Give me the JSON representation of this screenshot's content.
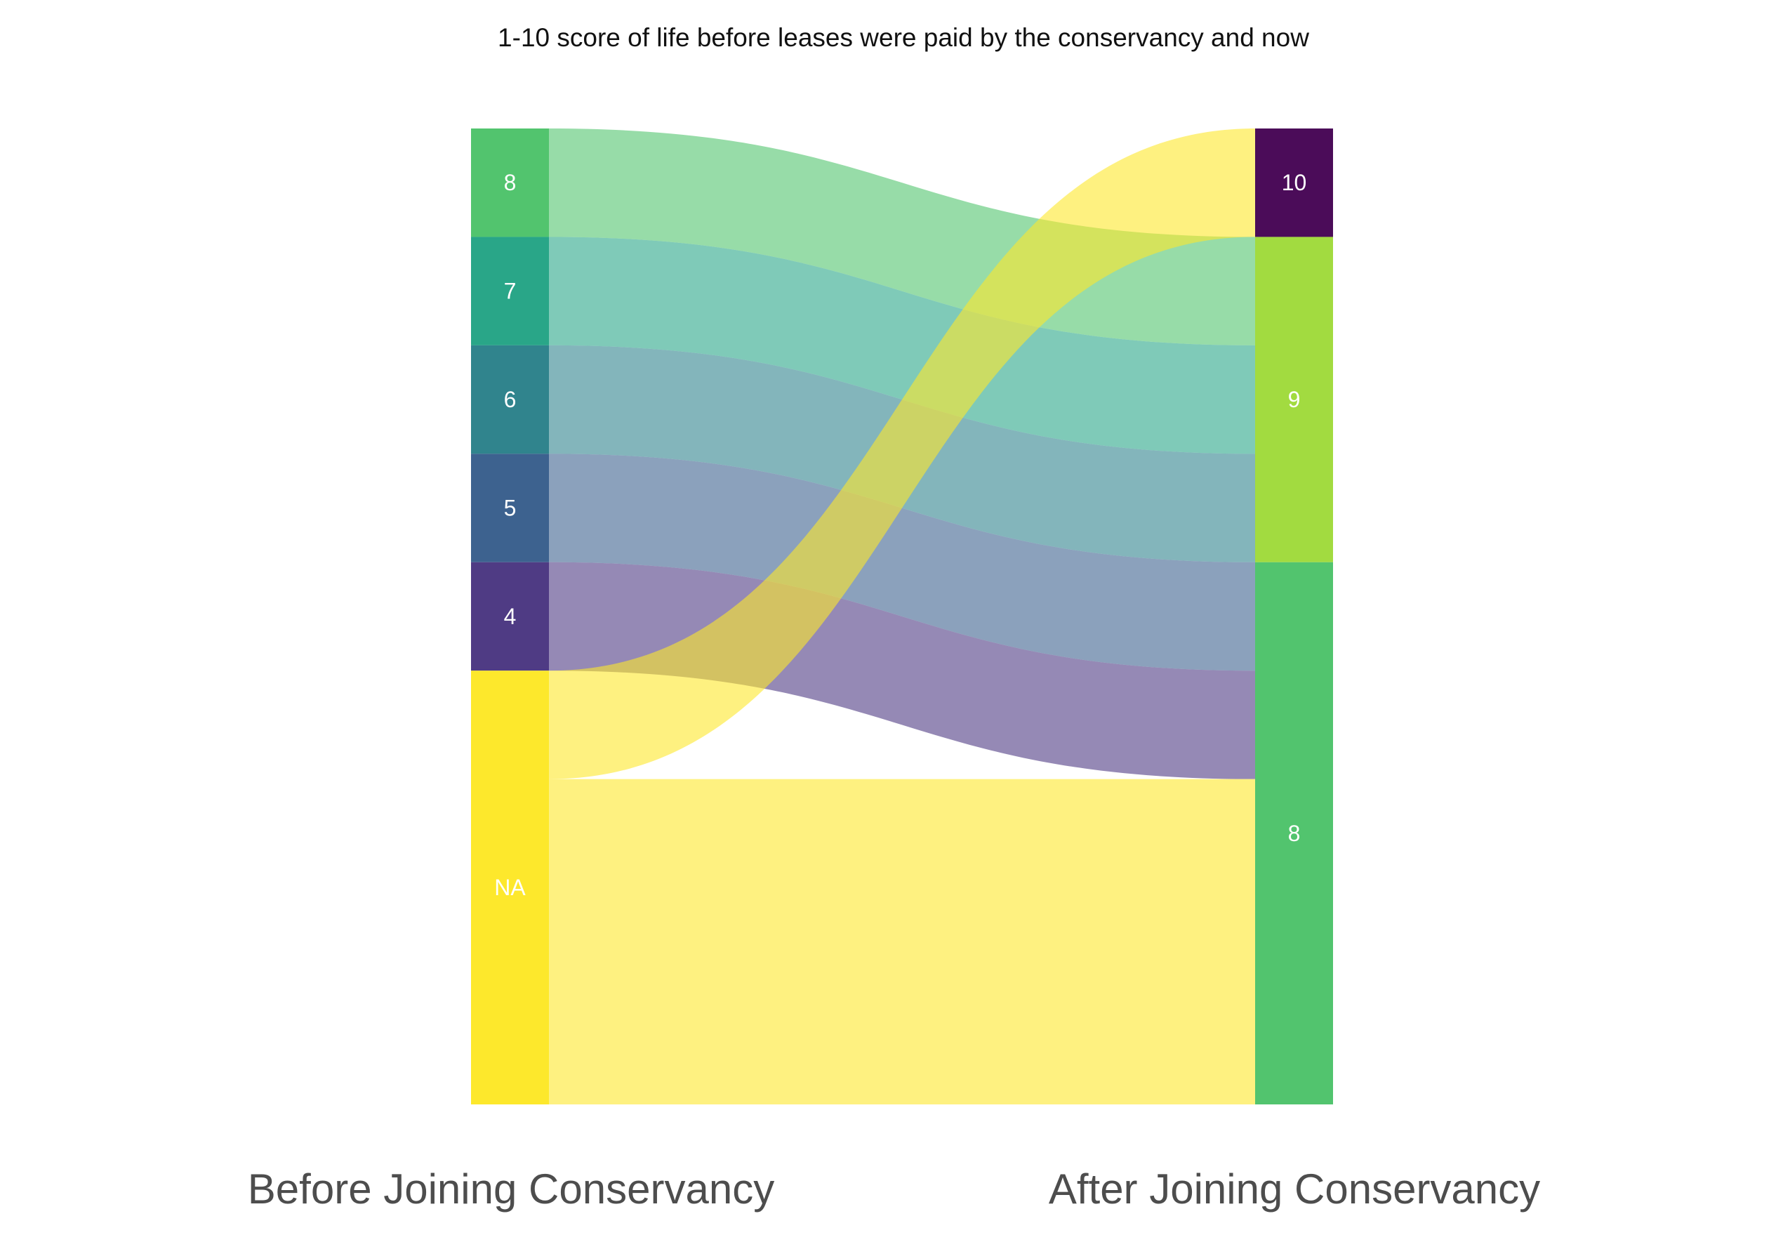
{
  "chart_data": {
    "type": "sankey",
    "title": "1-10 score of life before leases were paid by the conservancy and now",
    "axes": {
      "left_label": "Before Joining Conservancy",
      "right_label": "After Joining Conservancy"
    },
    "left_nodes": [
      {
        "id": "b8",
        "label": "8",
        "color": "#52c46e"
      },
      {
        "id": "b7",
        "label": "7",
        "color": "#29a688"
      },
      {
        "id": "b6",
        "label": "6",
        "color": "#30848d"
      },
      {
        "id": "b5",
        "label": "5",
        "color": "#3d628f"
      },
      {
        "id": "b4",
        "label": "4",
        "color": "#4f3b84"
      },
      {
        "id": "bNA",
        "label": "NA",
        "color": "#fde82c"
      }
    ],
    "right_nodes": [
      {
        "id": "a10",
        "label": "10",
        "color": "#4b0c59"
      },
      {
        "id": "a9",
        "label": "9",
        "color": "#a2db40"
      },
      {
        "id": "a8",
        "label": "8",
        "color": "#52c46e"
      }
    ],
    "flows": [
      {
        "source": "b8",
        "target": "a9",
        "value": 1
      },
      {
        "source": "b7",
        "target": "a9",
        "value": 1
      },
      {
        "source": "b6",
        "target": "a9",
        "value": 1
      },
      {
        "source": "b5",
        "target": "a8",
        "value": 1
      },
      {
        "source": "b4",
        "target": "a8",
        "value": 1
      },
      {
        "source": "bNA",
        "target": "a10",
        "value": 1
      },
      {
        "source": "bNA",
        "target": "a8",
        "value": 3
      }
    ]
  }
}
